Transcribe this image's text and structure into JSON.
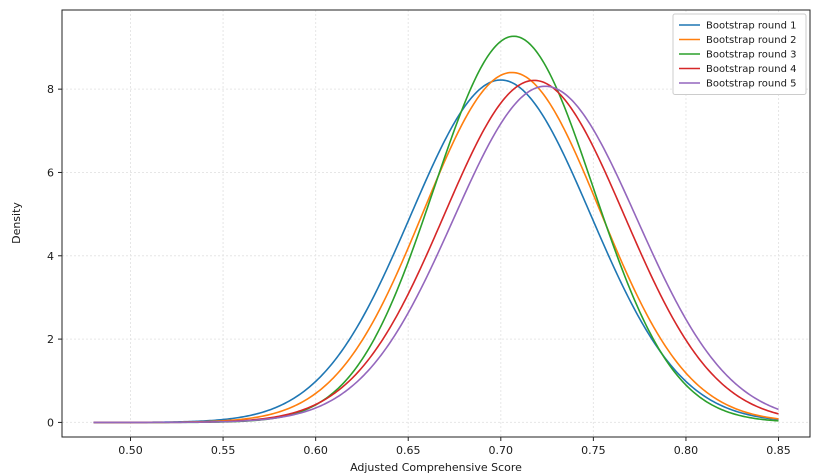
{
  "chart_data": {
    "type": "line",
    "xlabel": "Adjusted Comprehensive Score",
    "ylabel": "Density",
    "xlim": [
      0.463,
      0.867
    ],
    "ylim": [
      -0.35,
      9.9
    ],
    "xticks": [
      0.5,
      0.55,
      0.6,
      0.65,
      0.7,
      0.75,
      0.8,
      0.85
    ],
    "xtick_labels": [
      "0.50",
      "0.55",
      "0.60",
      "0.65",
      "0.70",
      "0.75",
      "0.80",
      "0.85"
    ],
    "yticks": [
      0,
      2,
      4,
      6,
      8
    ],
    "ytick_labels": [
      "0",
      "2",
      "4",
      "6",
      "8"
    ],
    "grid": true,
    "legend_position": "top-right",
    "x_range": [
      0.48,
      0.85
    ],
    "series": [
      {
        "name": "Bootstrap round 1",
        "color": "#1f77b4",
        "peak_x": 0.7,
        "peak_density": 8.22
      },
      {
        "name": "Bootstrap round 2",
        "color": "#ff7f0e",
        "peak_x": 0.706,
        "peak_density": 8.4
      },
      {
        "name": "Bootstrap round 3",
        "color": "#2ca02c",
        "peak_x": 0.707,
        "peak_density": 9.27
      },
      {
        "name": "Bootstrap round 4",
        "color": "#d62728",
        "peak_x": 0.718,
        "peak_density": 8.21
      },
      {
        "name": "Bootstrap round 5",
        "color": "#9467bd",
        "peak_x": 0.724,
        "peak_density": 8.07
      }
    ]
  }
}
